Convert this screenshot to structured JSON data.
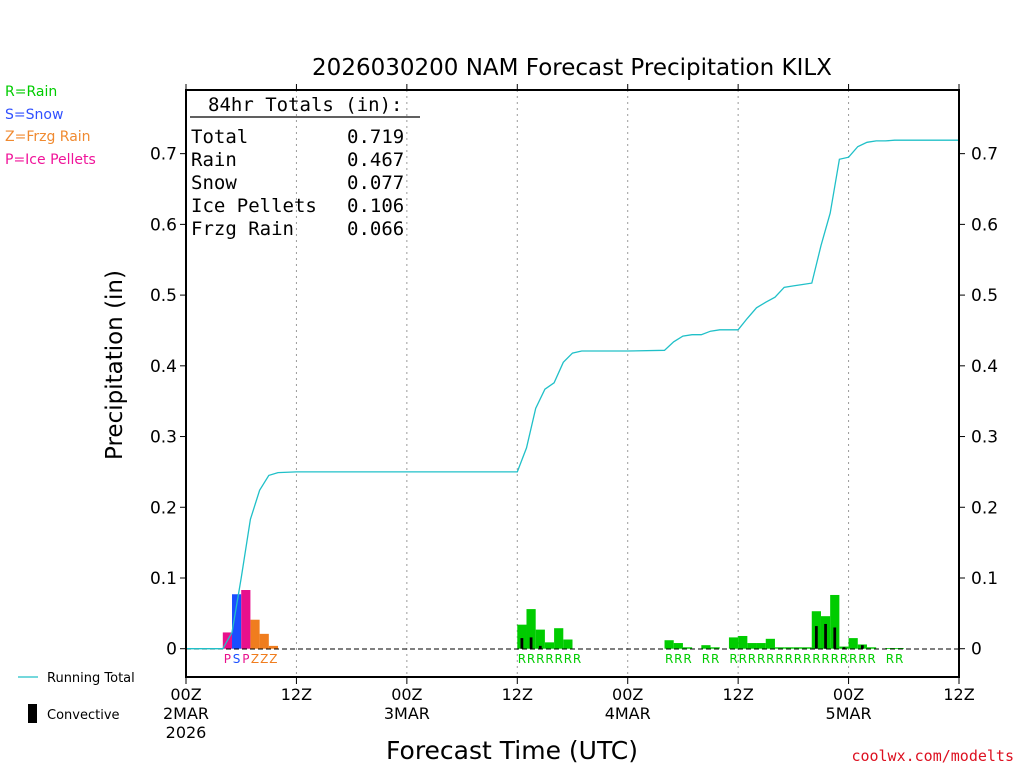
{
  "chart_data": {
    "type": "bar",
    "title": "2026030200 NAM Forecast Precipitation KILX",
    "xlabel": "Forecast Time (UTC)",
    "ylabel": "Precipitation (in)",
    "ylim": [
      -0.04,
      0.79
    ],
    "xlim_hours": [
      0,
      84
    ],
    "y_ticks": [
      {
        "value": 0,
        "label": "0"
      },
      {
        "value": 0.1,
        "label": "0.1"
      },
      {
        "value": 0.2,
        "label": "0.2"
      },
      {
        "value": 0.3,
        "label": "0.3"
      },
      {
        "value": 0.4,
        "label": "0.4"
      },
      {
        "value": 0.5,
        "label": "0.5"
      },
      {
        "value": 0.6,
        "label": "0.6"
      },
      {
        "value": 0.7,
        "label": "0.7"
      }
    ],
    "x_ticks": [
      {
        "hour": 0,
        "lines": [
          "00Z",
          "2MAR",
          "2026"
        ]
      },
      {
        "hour": 12,
        "lines": [
          "12Z"
        ]
      },
      {
        "hour": 24,
        "lines": [
          "00Z",
          "3MAR"
        ]
      },
      {
        "hour": 36,
        "lines": [
          "12Z"
        ]
      },
      {
        "hour": 48,
        "lines": [
          "00Z",
          "4MAR"
        ]
      },
      {
        "hour": 60,
        "lines": [
          "12Z"
        ]
      },
      {
        "hour": 72,
        "lines": [
          "00Z",
          "5MAR"
        ]
      },
      {
        "hour": 84,
        "lines": [
          "12Z"
        ]
      }
    ],
    "totals": {
      "heading": "84hr Totals (in):",
      "rows": [
        {
          "label": "Total",
          "value": "0.719"
        },
        {
          "label": "Rain",
          "value": "0.467"
        },
        {
          "label": "Snow",
          "value": "0.077"
        },
        {
          "label": "Ice Pellets",
          "value": "0.106"
        },
        {
          "label": "Frzg Rain",
          "value": "0.066"
        }
      ]
    },
    "type_legend": [
      {
        "text": "R=Rain",
        "color": "#00cc00"
      },
      {
        "text": "S=Snow",
        "color": "#3050ff"
      },
      {
        "text": "Z=Frzg Rain",
        "color": "#f08a30"
      },
      {
        "text": "P=Ice Pellets",
        "color": "#f0149a"
      }
    ],
    "line_legend": {
      "running_total": "Running Total",
      "convective": "Convective"
    },
    "colors": {
      "R": "#00cc00",
      "S": "#1a4dff",
      "Z": "#f07d1e",
      "P": "#e8108c",
      "running_total": "#20c0c8",
      "convective": "#000000"
    },
    "series": [
      {
        "name": "Hourly precipitation",
        "bars": [
          {
            "hour": 5,
            "type": "P",
            "value": 0.023,
            "conv": 0
          },
          {
            "hour": 6,
            "type": "S",
            "value": 0.077,
            "conv": 0
          },
          {
            "hour": 7,
            "type": "P",
            "value": 0.083,
            "conv": 0
          },
          {
            "hour": 8,
            "type": "Z",
            "value": 0.041,
            "conv": 0
          },
          {
            "hour": 9,
            "type": "Z",
            "value": 0.021,
            "conv": 0
          },
          {
            "hour": 10,
            "type": "Z",
            "value": 0.004,
            "conv": 0
          },
          {
            "hour": 37,
            "type": "R",
            "value": 0.034,
            "conv": 0.015
          },
          {
            "hour": 38,
            "type": "R",
            "value": 0.056,
            "conv": 0.016
          },
          {
            "hour": 39,
            "type": "R",
            "value": 0.027,
            "conv": 0.004
          },
          {
            "hour": 40,
            "type": "R",
            "value": 0.009,
            "conv": 0
          },
          {
            "hour": 41,
            "type": "R",
            "value": 0.029,
            "conv": 0
          },
          {
            "hour": 42,
            "type": "R",
            "value": 0.013,
            "conv": 0
          },
          {
            "hour": 53,
            "type": "R",
            "value": 0.012,
            "conv": 0
          },
          {
            "hour": 54,
            "type": "R",
            "value": 0.008,
            "conv": 0
          },
          {
            "hour": 55,
            "type": "R",
            "value": 0.002,
            "conv": 0
          },
          {
            "hour": 57,
            "type": "R",
            "value": 0.005,
            "conv": 0
          },
          {
            "hour": 58,
            "type": "R",
            "value": 0.002,
            "conv": 0
          },
          {
            "hour": 60,
            "type": "R",
            "value": 0.016,
            "conv": 0
          },
          {
            "hour": 61,
            "type": "R",
            "value": 0.018,
            "conv": 0
          },
          {
            "hour": 62,
            "type": "R",
            "value": 0.008,
            "conv": 0
          },
          {
            "hour": 63,
            "type": "R",
            "value": 0.008,
            "conv": 0
          },
          {
            "hour": 64,
            "type": "R",
            "value": 0.014,
            "conv": 0
          },
          {
            "hour": 65,
            "type": "R",
            "value": 0.002,
            "conv": 0
          },
          {
            "hour": 66,
            "type": "R",
            "value": 0.002,
            "conv": 0
          },
          {
            "hour": 67,
            "type": "R",
            "value": 0.002,
            "conv": 0
          },
          {
            "hour": 68,
            "type": "R",
            "value": 0.002,
            "conv": 0
          },
          {
            "hour": 69,
            "type": "R",
            "value": 0.053,
            "conv": 0.032
          },
          {
            "hour": 70,
            "type": "R",
            "value": 0.046,
            "conv": 0.035
          },
          {
            "hour": 71,
            "type": "R",
            "value": 0.076,
            "conv": 0.03
          },
          {
            "hour": 72,
            "type": "R",
            "value": 0.003,
            "conv": 0.002
          },
          {
            "hour": 73,
            "type": "R",
            "value": 0.015,
            "conv": 0
          },
          {
            "hour": 74,
            "type": "R",
            "value": 0.006,
            "conv": 0.005
          },
          {
            "hour": 75,
            "type": "R",
            "value": 0.002,
            "conv": 0
          },
          {
            "hour": 77,
            "type": "R",
            "value": 0.001,
            "conv": 0
          },
          {
            "hour": 78,
            "type": "R",
            "value": 0.001,
            "conv": 0
          }
        ]
      },
      {
        "name": "Running Total",
        "x": [
          0,
          3,
          4,
          5,
          6,
          7,
          8,
          9,
          10,
          12,
          14,
          20,
          30,
          36,
          37,
          38,
          39,
          40,
          41,
          42,
          43,
          44,
          48,
          52,
          53,
          54,
          55,
          56,
          57,
          58,
          60,
          61,
          62,
          63,
          64,
          65,
          66,
          67,
          68,
          69,
          70,
          71,
          72,
          73,
          74,
          75,
          76,
          77,
          78,
          84
        ],
        "values": [
          0,
          0,
          0,
          0.023,
          0.1,
          0.183,
          0.224,
          0.245,
          0.249,
          0.25,
          0.25,
          0.25,
          0.25,
          0.25,
          0.284,
          0.34,
          0.367,
          0.376,
          0.405,
          0.418,
          0.421,
          0.421,
          0.421,
          0.422,
          0.434,
          0.442,
          0.444,
          0.444,
          0.449,
          0.451,
          0.451,
          0.467,
          0.482,
          0.49,
          0.497,
          0.511,
          0.513,
          0.515,
          0.517,
          0.57,
          0.616,
          0.692,
          0.695,
          0.71,
          0.716,
          0.718,
          0.718,
          0.719,
          0.719,
          0.719
        ]
      }
    ],
    "type_strip": [
      {
        "hour": 5,
        "char": "P"
      },
      {
        "hour": 6,
        "char": "S"
      },
      {
        "hour": 7,
        "char": "P"
      },
      {
        "hour": 8,
        "char": "Z"
      },
      {
        "hour": 9,
        "char": "Z"
      },
      {
        "hour": 10,
        "char": "Z"
      },
      {
        "hour": 37,
        "char": "R"
      },
      {
        "hour": 38,
        "char": "R"
      },
      {
        "hour": 39,
        "char": "R"
      },
      {
        "hour": 40,
        "char": "R"
      },
      {
        "hour": 41,
        "char": "R"
      },
      {
        "hour": 42,
        "char": "R"
      },
      {
        "hour": 43,
        "char": "R"
      },
      {
        "hour": 53,
        "char": "R"
      },
      {
        "hour": 54,
        "char": "R"
      },
      {
        "hour": 55,
        "char": "R"
      },
      {
        "hour": 57,
        "char": "R"
      },
      {
        "hour": 58,
        "char": "R"
      },
      {
        "hour": 60,
        "char": "R"
      },
      {
        "hour": 61,
        "char": "R"
      },
      {
        "hour": 62,
        "char": "R"
      },
      {
        "hour": 63,
        "char": "R"
      },
      {
        "hour": 64,
        "char": "R"
      },
      {
        "hour": 65,
        "char": "R"
      },
      {
        "hour": 66,
        "char": "R"
      },
      {
        "hour": 67,
        "char": "R"
      },
      {
        "hour": 68,
        "char": "R"
      },
      {
        "hour": 69,
        "char": "R"
      },
      {
        "hour": 70,
        "char": "R"
      },
      {
        "hour": 71,
        "char": "R"
      },
      {
        "hour": 72,
        "char": "R"
      },
      {
        "hour": 73,
        "char": "R"
      },
      {
        "hour": 74,
        "char": "R"
      },
      {
        "hour": 75,
        "char": "R"
      },
      {
        "hour": 77,
        "char": "R"
      },
      {
        "hour": 78,
        "char": "R"
      }
    ]
  },
  "credit": "coolwx.com/modelts"
}
